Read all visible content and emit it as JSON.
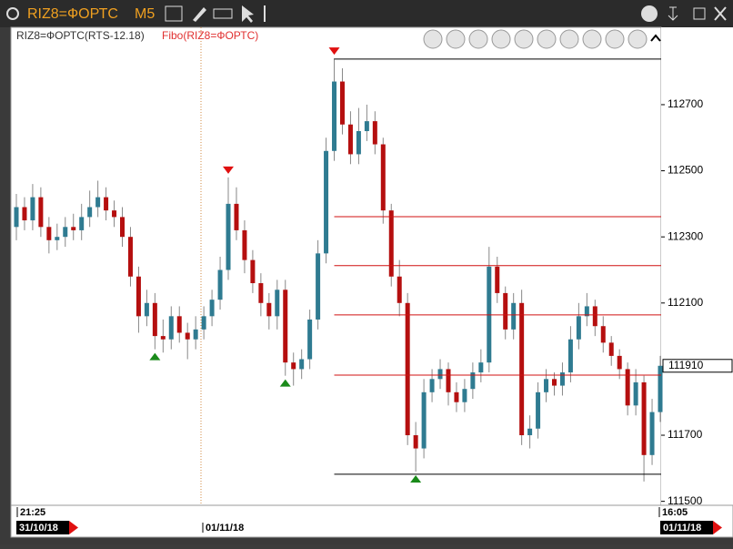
{
  "window": {
    "symbol": "RIZ8=ФОРТС",
    "timeframe": "M5"
  },
  "chart_data": {
    "type": "candlestick",
    "legend": [
      "RIZ8=ФОРТС(RTS-12.18)",
      "Fibo(RIZ8=ФОРТС)"
    ],
    "open": [
      112330,
      112390,
      112350,
      112420,
      112330,
      112290,
      112300,
      112330,
      112320,
      112360,
      112390,
      112420,
      112380,
      112360,
      112300,
      112180,
      112060,
      112100,
      112000,
      111990,
      112060,
      112010,
      111990,
      112020,
      112060,
      112110,
      112200,
      112400,
      112320,
      112230,
      112160,
      112100,
      112060,
      112140,
      111920,
      111900,
      111930,
      112050,
      112250,
      112560,
      112770,
      112640,
      112550,
      112620,
      112650,
      112580,
      112380,
      112180,
      112100,
      111700,
      111660,
      111830,
      111870,
      111900,
      111830,
      111800,
      111840,
      111890,
      111920,
      112210,
      112130,
      112020,
      112100,
      111700,
      111720,
      111830,
      111870,
      111850,
      111890,
      111990,
      112060,
      112090,
      112030,
      111980,
      111940,
      111900,
      111790,
      111860,
      111640,
      111770
    ],
    "high": [
      112430,
      112420,
      112460,
      112450,
      112360,
      112340,
      112360,
      112370,
      112400,
      112440,
      112470,
      112450,
      112410,
      112390,
      112330,
      112210,
      112140,
      112130,
      112050,
      112090,
      112090,
      112040,
      112060,
      112090,
      112140,
      112240,
      112480,
      112450,
      112350,
      112260,
      112190,
      112130,
      112170,
      112170,
      111950,
      111960,
      112080,
      112290,
      112600,
      112840,
      112810,
      112680,
      112690,
      112700,
      112680,
      112600,
      112400,
      112230,
      112130,
      111740,
      111870,
      111900,
      111930,
      111920,
      111860,
      111870,
      111920,
      111960,
      112270,
      112240,
      112150,
      112130,
      112140,
      111760,
      111860,
      111900,
      111890,
      111920,
      112030,
      112100,
      112130,
      112110,
      112060,
      112000,
      111960,
      111920,
      111900,
      111880,
      111810,
      111940
    ],
    "low": [
      112290,
      112320,
      112320,
      112300,
      112250,
      112260,
      112270,
      112290,
      112290,
      112330,
      112360,
      112350,
      112330,
      112270,
      112150,
      112010,
      112030,
      111960,
      111950,
      111960,
      111980,
      111930,
      111960,
      111990,
      112030,
      112080,
      112170,
      112290,
      112190,
      112130,
      112060,
      112020,
      112020,
      111880,
      111850,
      111870,
      111900,
      112020,
      112220,
      112530,
      112610,
      112520,
      112520,
      112590,
      112550,
      112340,
      112150,
      112060,
      111670,
      111590,
      111630,
      111800,
      111840,
      111790,
      111770,
      111770,
      111810,
      111860,
      111890,
      112100,
      111990,
      111990,
      111670,
      111660,
      111690,
      111800,
      111820,
      111820,
      111860,
      111960,
      112030,
      112000,
      111950,
      111910,
      111870,
      111760,
      111760,
      111560,
      111610,
      111740
    ],
    "close": [
      112390,
      112350,
      112420,
      112330,
      112290,
      112300,
      112330,
      112320,
      112360,
      112390,
      112420,
      112380,
      112360,
      112300,
      112180,
      112060,
      112100,
      112000,
      111990,
      112060,
      112010,
      111990,
      112020,
      112060,
      112110,
      112200,
      112400,
      112320,
      112230,
      112160,
      112100,
      112060,
      112140,
      111920,
      111900,
      111930,
      112050,
      112250,
      112560,
      112770,
      112640,
      112550,
      112620,
      112650,
      112580,
      112380,
      112180,
      112100,
      111700,
      111660,
      111830,
      111870,
      111900,
      111830,
      111800,
      111840,
      111890,
      111920,
      112210,
      112130,
      112020,
      112100,
      111700,
      111720,
      111830,
      111870,
      111850,
      111890,
      111990,
      112060,
      112090,
      112030,
      111980,
      111940,
      111900,
      111790,
      111860,
      111640,
      111770,
      111910
    ],
    "up_color": "#2f7b91",
    "down_color": "#b50f0f",
    "ylim": [
      111488,
      112934
    ],
    "yticks": [
      111500,
      111700,
      112100,
      112300,
      112500,
      112700
    ],
    "fibo_levels": [
      112838,
      112361,
      112213,
      112064,
      111882,
      111582
    ],
    "time_labels": [
      "21:25",
      "01/11/18",
      "16:05"
    ],
    "date_tags": [
      "31/10/18",
      "01/11/18"
    ]
  }
}
